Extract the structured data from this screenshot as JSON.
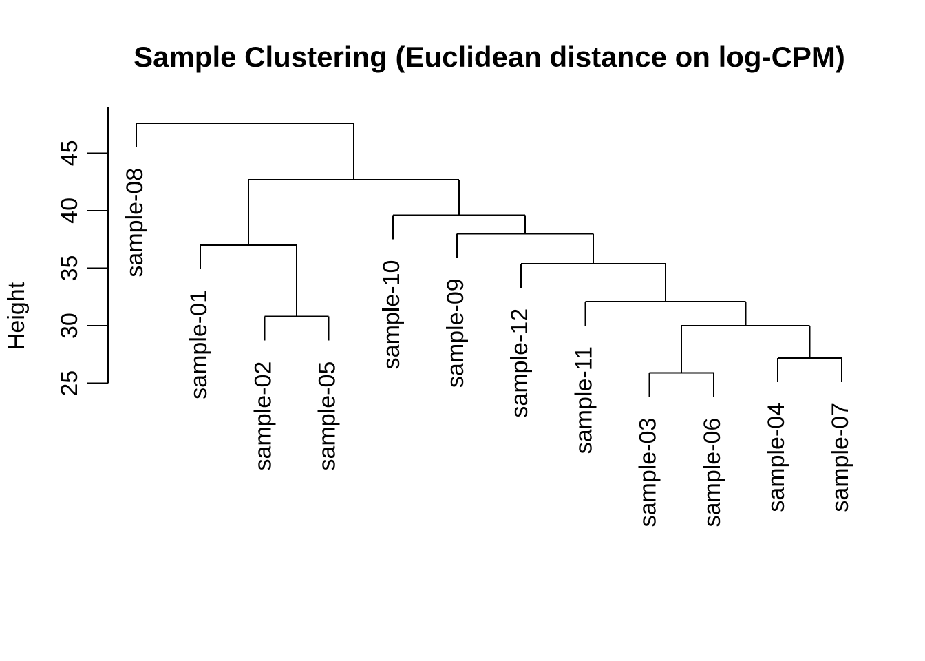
{
  "chart_data": {
    "type": "dendrogram",
    "title": "Sample Clustering (Euclidean distance on log-CPM)",
    "ylabel": "Height",
    "yticks": [
      25,
      30,
      35,
      40,
      45
    ],
    "ylim": [
      25,
      49
    ],
    "grid": false,
    "orientation": "vertical",
    "leaf_order": [
      "sample-08",
      "sample-01",
      "sample-02",
      "sample-05",
      "sample-10",
      "sample-09",
      "sample-12",
      "sample-11",
      "sample-03",
      "sample-06",
      "sample-04",
      "sample-07"
    ],
    "hang_units": 2.1,
    "merges": [
      {
        "pair": [
          "sample-03",
          "sample-06"
        ],
        "height": 25.9
      },
      {
        "pair": [
          "sample-04",
          "sample-07"
        ],
        "height": 27.2
      },
      {
        "pair": [
          "(sample-03,sample-06)",
          "(sample-04,sample-07)"
        ],
        "height": 30.0
      },
      {
        "pair": [
          "sample-02",
          "sample-05"
        ],
        "height": 30.8
      },
      {
        "pair": [
          "sample-11",
          "(03,06,04,07)"
        ],
        "height": 32.1
      },
      {
        "pair": [
          "sample-12",
          "(11,03,06,04,07)"
        ],
        "height": 35.4
      },
      {
        "pair": [
          "sample-01",
          "(sample-02,sample-05)"
        ],
        "height": 37.0
      },
      {
        "pair": [
          "sample-09",
          "(12,11,03,06,04,07)"
        ],
        "height": 38.0
      },
      {
        "pair": [
          "sample-10",
          "(09,12,11,03,06,04,07)"
        ],
        "height": 39.6
      },
      {
        "pair": [
          "(01,02,05)",
          "(10,09,12,11,03,06,04,07)"
        ],
        "height": 42.7
      },
      {
        "pair": [
          "sample-08",
          "rest"
        ],
        "height": 47.6
      }
    ],
    "tree": {
      "height": 47.6,
      "children": [
        {
          "leaf": "sample-08"
        },
        {
          "height": 42.7,
          "children": [
            {
              "height": 37.0,
              "children": [
                {
                  "leaf": "sample-01"
                },
                {
                  "height": 30.8,
                  "children": [
                    {
                      "leaf": "sample-02"
                    },
                    {
                      "leaf": "sample-05"
                    }
                  ]
                }
              ]
            },
            {
              "height": 39.6,
              "children": [
                {
                  "leaf": "sample-10"
                },
                {
                  "height": 38.0,
                  "children": [
                    {
                      "leaf": "sample-09"
                    },
                    {
                      "height": 35.4,
                      "children": [
                        {
                          "leaf": "sample-12"
                        },
                        {
                          "height": 32.1,
                          "children": [
                            {
                              "leaf": "sample-11"
                            },
                            {
                              "height": 30.0,
                              "children": [
                                {
                                  "height": 25.9,
                                  "children": [
                                    {
                                      "leaf": "sample-03"
                                    },
                                    {
                                      "leaf": "sample-06"
                                    }
                                  ]
                                },
                                {
                                  "height": 27.2,
                                  "children": [
                                    {
                                      "leaf": "sample-04"
                                    },
                                    {
                                      "leaf": "sample-07"
                                    }
                                  ]
                                }
                              ]
                            }
                          ]
                        }
                      ]
                    }
                  ]
                }
              ]
            }
          ]
        }
      ]
    },
    "colors": {
      "line": "#000000",
      "text": "#000000",
      "background": "#ffffff"
    }
  }
}
